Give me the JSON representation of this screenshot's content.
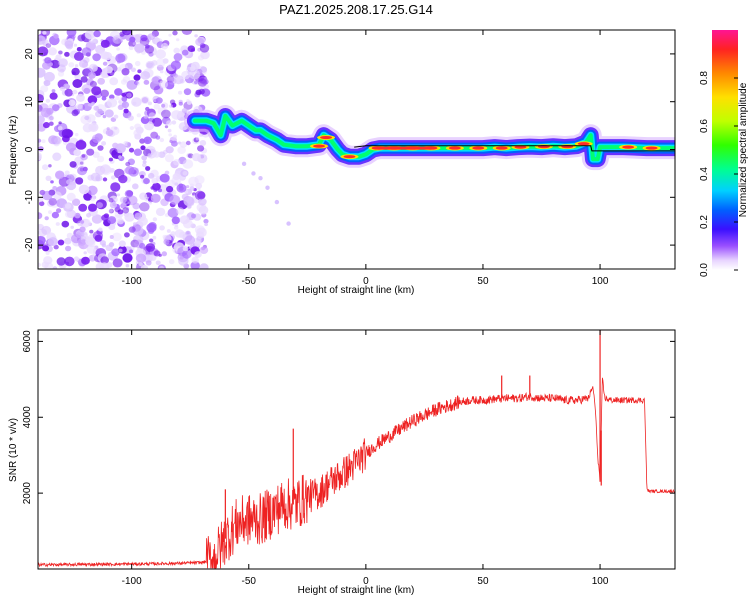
{
  "figure_title": "PAZ1.2025.208.17.25.G14",
  "colors": {
    "snr_line": "#ee2222",
    "frequency_track": "#000000",
    "noise": "#8a3cff",
    "colorscale": [
      "#ffffff",
      "#d8b4ff",
      "#8a2be2",
      "#3300ff",
      "#0066ff",
      "#00ccff",
      "#00ff66",
      "#66ff00",
      "#ffee00",
      "#ff8800",
      "#ff2222",
      "#ff1493"
    ]
  },
  "chart_data": [
    {
      "type": "heatmap",
      "title": "PAZ1.2025.208.17.25.G14",
      "xlabel": "Height of straight line (km)",
      "ylabel": "Frequency (Hz)",
      "xlim": [
        -140,
        132
      ],
      "ylim": [
        -25,
        25
      ],
      "x_ticks": [
        -100,
        -50,
        0,
        50,
        100
      ],
      "x_tick_labels": [
        "-100",
        "-50",
        "0",
        "50",
        "100"
      ],
      "y_ticks": [
        -20,
        -10,
        0,
        10,
        20
      ],
      "y_tick_labels": [
        "-20",
        "-10",
        "0",
        "10",
        "20"
      ],
      "colorbar": {
        "label": "Normalized spectral amplitude",
        "range": [
          0,
          1
        ],
        "ticks": [
          0.0,
          0.2,
          0.4,
          0.6,
          0.8
        ],
        "tick_labels": [
          "0.0",
          "0.2",
          "0.4",
          "0.6",
          "0.8"
        ]
      },
      "frequency_track": {
        "x": [
          -73,
          -68,
          -65,
          -62,
          -60,
          -57,
          -53,
          -50,
          -47,
          -45,
          -42,
          -38,
          -35,
          -30,
          -25,
          -20,
          -18,
          -15,
          -12,
          -10,
          -7,
          -5,
          -3,
          0,
          3,
          6,
          10,
          20,
          30,
          40,
          50,
          55,
          60,
          65,
          70,
          75,
          80,
          85,
          90,
          94,
          96,
          97,
          99,
          100,
          105,
          110,
          120,
          132
        ],
        "y": [
          6,
          6,
          5.5,
          3,
          7,
          5,
          6,
          5,
          4,
          4,
          3,
          2,
          1,
          0.7,
          0.7,
          1,
          3,
          2,
          0,
          -1,
          -1.5,
          -1.5,
          -1.5,
          -1,
          0,
          0.3,
          0.3,
          0.3,
          0.3,
          0.3,
          0.3,
          0.5,
          0.3,
          0.5,
          0.6,
          0.5,
          0.7,
          0.5,
          0.7,
          1.5,
          3,
          -2,
          -2,
          0.5,
          0.5,
          0.5,
          0.3,
          0.3
        ]
      },
      "grid": false,
      "note_regions": {
        "noise_x_range": [
          -140,
          -68
        ]
      }
    },
    {
      "type": "line",
      "xlabel": "Height of straight line (km)",
      "ylabel": "SNR (10 * v/v)",
      "xlim": [
        -140,
        132
      ],
      "ylim": [
        0,
        6300
      ],
      "x_ticks": [
        -100,
        -50,
        0,
        50,
        100
      ],
      "x_tick_labels": [
        "-100",
        "-50",
        "0",
        "50",
        "100"
      ],
      "y_ticks": [
        2000,
        4000,
        6000
      ],
      "y_tick_labels": [
        "2000",
        "4000",
        "6000"
      ],
      "series": [
        {
          "x": [
            -140,
            -120,
            -100,
            -80,
            -70,
            -65,
            -60,
            -55,
            -50,
            -45,
            -40,
            -35,
            -30,
            -25,
            -20,
            -15,
            -10,
            -5,
            0,
            5,
            10,
            15,
            20,
            25,
            30,
            35,
            40,
            45,
            50,
            55,
            60,
            65,
            70,
            75,
            80,
            85,
            90,
            95,
            97,
            98,
            99,
            100,
            101,
            102,
            105,
            110,
            115,
            119,
            120,
            121,
            125,
            132
          ],
          "y": [
            110,
            120,
            130,
            150,
            170,
            250,
            800,
            1200,
            1300,
            1300,
            1500,
            1700,
            1700,
            1900,
            2000,
            2300,
            2500,
            2750,
            3050,
            3300,
            3500,
            3700,
            3900,
            4050,
            4200,
            4300,
            4400,
            4450,
            4450,
            4480,
            4500,
            4500,
            4550,
            4500,
            4500,
            4450,
            4450,
            4500,
            4800,
            4200,
            3000,
            2300,
            5000,
            4500,
            4450,
            4450,
            4450,
            4450,
            2100,
            2050,
            2050,
            2050
          ],
          "spikes": [
            {
              "x": -31,
              "y": 3700
            },
            {
              "x": -60,
              "y": 2100
            },
            {
              "x": 58,
              "y": 5100
            },
            {
              "x": 70,
              "y": 5100
            },
            {
              "x": 100,
              "y": 6300
            },
            {
              "x": 100.5,
              "y": 2200
            }
          ]
        }
      ],
      "grid": false
    }
  ]
}
